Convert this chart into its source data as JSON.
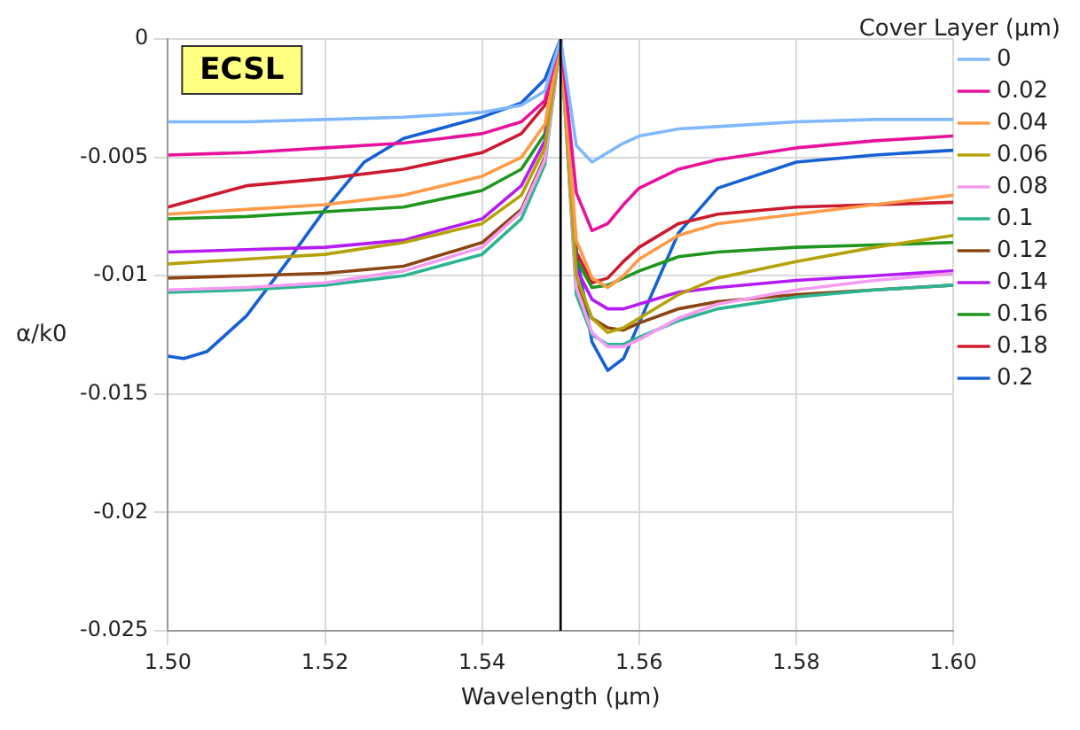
{
  "chart_data": {
    "type": "line",
    "xlabel": "Wavelength (µm)",
    "ylabel": "α/k0",
    "legend_title": "Cover Layer (µm)",
    "annotations": [
      "ECSL"
    ],
    "x": [
      1.5,
      1.51,
      1.52,
      1.53,
      1.54,
      1.545,
      1.548,
      1.55,
      1.552,
      1.554,
      1.556,
      1.558,
      1.56,
      1.565,
      1.57,
      1.58,
      1.59,
      1.6
    ],
    "series": [
      {
        "name": "0",
        "color": "#7fb8ff",
        "values": [
          -0.0035,
          -0.0035,
          -0.0034,
          -0.0033,
          -0.0031,
          -0.0028,
          -0.0022,
          0,
          -0.0045,
          -0.0052,
          -0.0048,
          -0.0044,
          -0.0041,
          -0.0038,
          -0.0037,
          -0.0035,
          -0.0034,
          -0.0034
        ]
      },
      {
        "name": "0.02",
        "color": "#e8119b",
        "values": [
          -0.0049,
          -0.0048,
          -0.0046,
          -0.0044,
          -0.004,
          -0.0035,
          -0.0026,
          0,
          -0.0065,
          -0.0081,
          -0.0078,
          -0.007,
          -0.0063,
          -0.0055,
          -0.0051,
          -0.0046,
          -0.0043,
          -0.0041
        ]
      },
      {
        "name": "0.04",
        "color": "#ff9a47",
        "values": [
          -0.0074,
          -0.0072,
          -0.007,
          -0.0066,
          -0.0058,
          -0.005,
          -0.0036,
          0,
          -0.0085,
          -0.0101,
          -0.0105,
          -0.01,
          -0.0093,
          -0.0083,
          -0.0078,
          -0.0074,
          -0.007,
          -0.0066
        ]
      },
      {
        "name": "0.06",
        "color": "#b5a20a",
        "values": [
          -0.0095,
          -0.0093,
          -0.0091,
          -0.0086,
          -0.0078,
          -0.0066,
          -0.0046,
          0,
          -0.01,
          -0.0118,
          -0.0124,
          -0.0122,
          -0.0118,
          -0.0108,
          -0.0101,
          -0.0094,
          -0.0088,
          -0.0083
        ]
      },
      {
        "name": "0.08",
        "color": "#f59cf0",
        "values": [
          -0.0106,
          -0.0105,
          -0.0103,
          -0.0098,
          -0.0088,
          -0.0073,
          -0.0051,
          0,
          -0.0105,
          -0.0124,
          -0.013,
          -0.013,
          -0.0127,
          -0.0118,
          -0.0112,
          -0.0106,
          -0.0102,
          -0.0099
        ]
      },
      {
        "name": "0.1",
        "color": "#2bb592",
        "values": [
          -0.0107,
          -0.0106,
          -0.0104,
          -0.01,
          -0.0091,
          -0.0076,
          -0.0053,
          0,
          -0.0108,
          -0.0125,
          -0.0129,
          -0.0129,
          -0.0126,
          -0.0119,
          -0.0114,
          -0.0109,
          -0.0106,
          -0.0104
        ]
      },
      {
        "name": "0.12",
        "color": "#8b4513",
        "values": [
          -0.0101,
          -0.01,
          -0.0099,
          -0.0096,
          -0.0086,
          -0.0072,
          -0.005,
          0,
          -0.0103,
          -0.0118,
          -0.0122,
          -0.0123,
          -0.012,
          -0.0114,
          -0.0111,
          -0.0108,
          -0.0106,
          -0.0104
        ]
      },
      {
        "name": "0.14",
        "color": "#b51cf5",
        "values": [
          -0.009,
          -0.0089,
          -0.0088,
          -0.0085,
          -0.0076,
          -0.0062,
          -0.0043,
          0,
          -0.0097,
          -0.011,
          -0.0114,
          -0.0114,
          -0.0112,
          -0.0107,
          -0.0105,
          -0.0102,
          -0.01,
          -0.0098
        ]
      },
      {
        "name": "0.16",
        "color": "#1e961e",
        "values": [
          -0.0076,
          -0.0075,
          -0.0073,
          -0.0071,
          -0.0064,
          -0.0055,
          -0.004,
          0,
          -0.0093,
          -0.0105,
          -0.0104,
          -0.0101,
          -0.0098,
          -0.0092,
          -0.009,
          -0.0088,
          -0.0087,
          -0.0086
        ]
      },
      {
        "name": "0.18",
        "color": "#cc1a2e",
        "values": [
          -0.0071,
          -0.0062,
          -0.0059,
          -0.0055,
          -0.0048,
          -0.004,
          -0.0028,
          0,
          -0.009,
          -0.0103,
          -0.0101,
          -0.0094,
          -0.0088,
          -0.0078,
          -0.0074,
          -0.0071,
          -0.007,
          -0.0069
        ]
      },
      {
        "name": "0.2",
        "color": "#1560d4",
        "x": [
          1.5,
          1.502,
          1.505,
          1.51,
          1.515,
          1.52,
          1.525,
          1.53,
          1.54,
          1.545,
          1.548,
          1.55,
          1.552,
          1.554,
          1.556,
          1.558,
          1.56,
          1.565,
          1.57,
          1.58,
          1.59,
          1.6
        ],
        "values": [
          -0.0134,
          -0.0135,
          -0.0132,
          -0.0117,
          -0.0095,
          -0.0072,
          -0.0052,
          -0.0042,
          -0.0033,
          -0.0027,
          -0.0017,
          0,
          -0.009,
          -0.0128,
          -0.014,
          -0.0135,
          -0.012,
          -0.0082,
          -0.0063,
          -0.0052,
          -0.0049,
          -0.0047
        ]
      }
    ],
    "xlim": [
      1.5,
      1.6
    ],
    "xticks": [
      {
        "value": 1.5,
        "label": "1.50"
      },
      1.52,
      1.54,
      1.56,
      1.58,
      {
        "value": 1.6,
        "label": "1.60"
      }
    ],
    "ylim": [
      -0.025,
      0
    ],
    "yticks": [
      -0.025,
      -0.02,
      -0.015,
      -0.01,
      -0.005,
      0
    ],
    "ref_lines": [
      {
        "axis": "x",
        "value": 1.55,
        "color": "#000000"
      }
    ],
    "grid": true,
    "legend": "right",
    "marker": "none",
    "line_style": "solid"
  }
}
